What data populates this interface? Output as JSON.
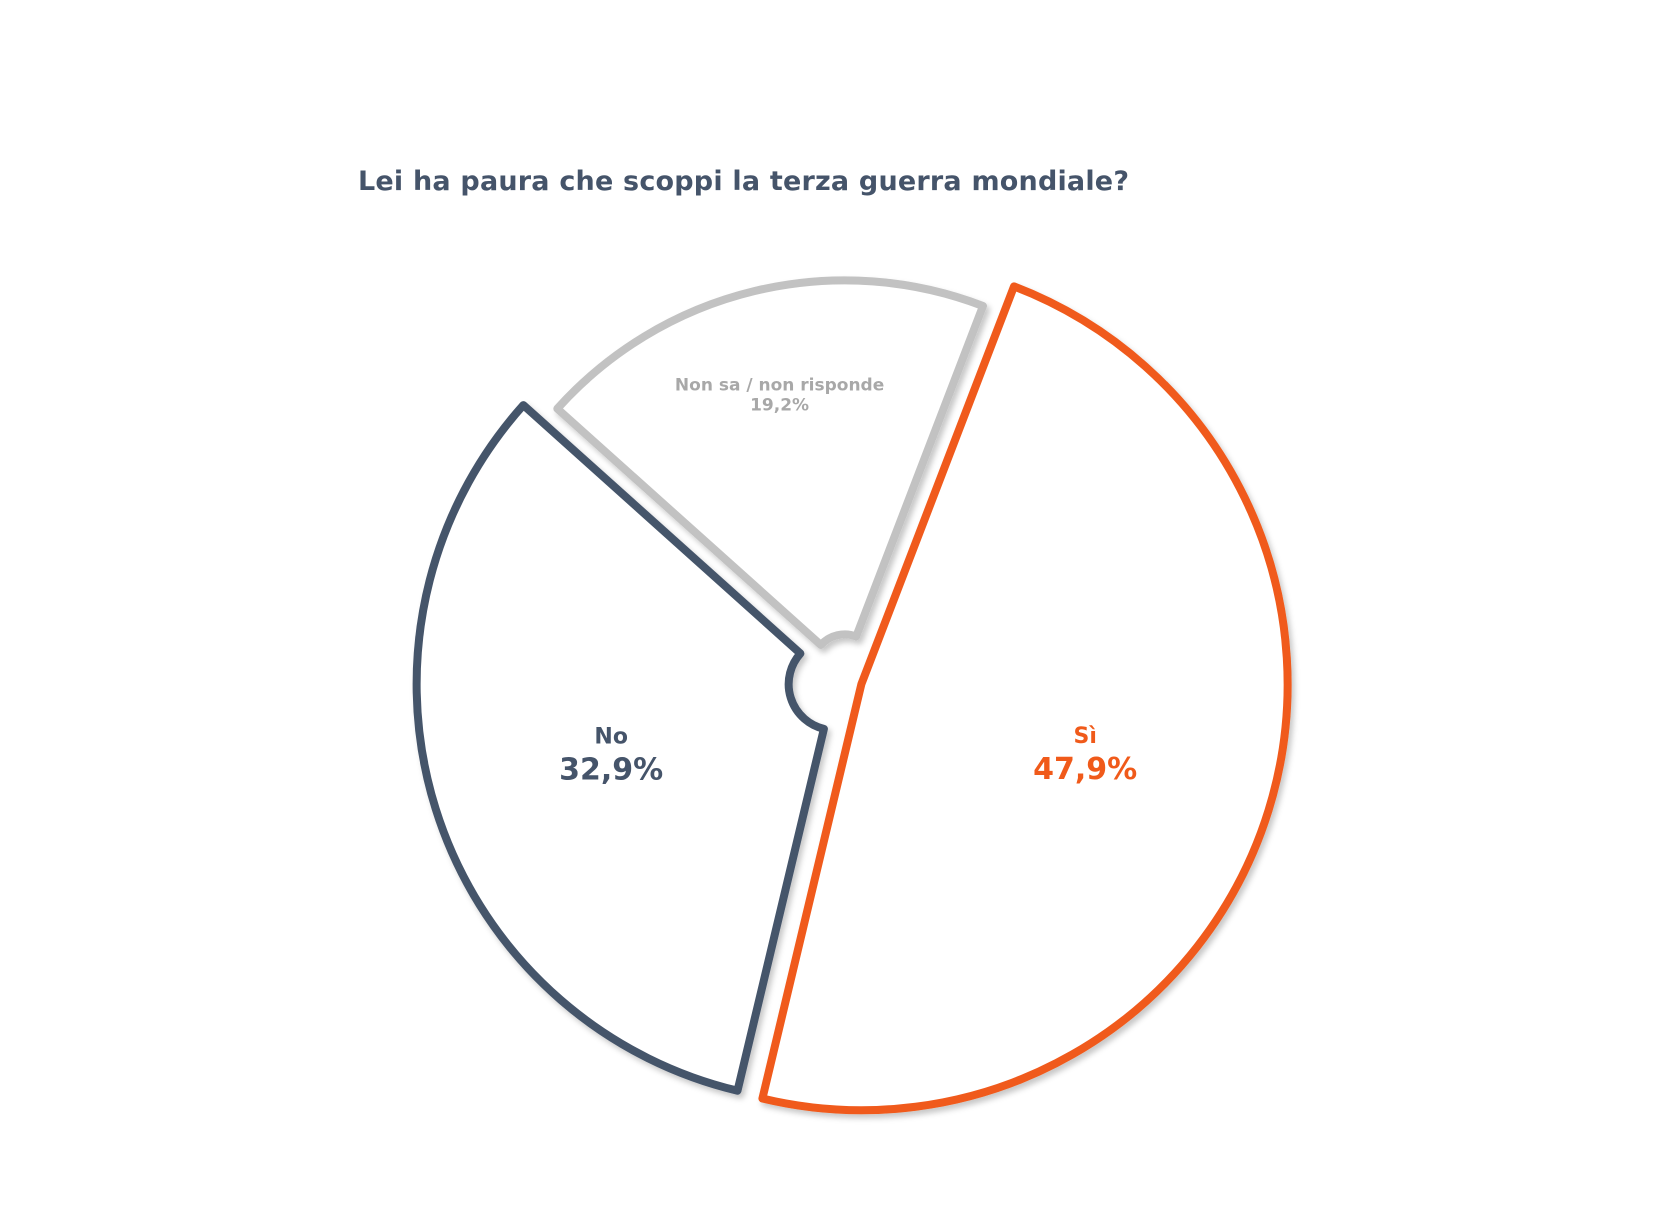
{
  "chart_data": {
    "type": "pie",
    "title": "Lei ha paura che scoppi la terza guerra mondiale?",
    "slices": [
      {
        "label": "Sì",
        "value": 47.9,
        "value_label": "47,9%",
        "color": "#f05a1a"
      },
      {
        "label": "No",
        "value": 32.9,
        "value_label": "32,9%",
        "color": "#45546a"
      },
      {
        "label": "Non sa / non risponde",
        "value": 19.2,
        "value_label": "19,2%",
        "color": "#c2c2c2"
      }
    ]
  }
}
